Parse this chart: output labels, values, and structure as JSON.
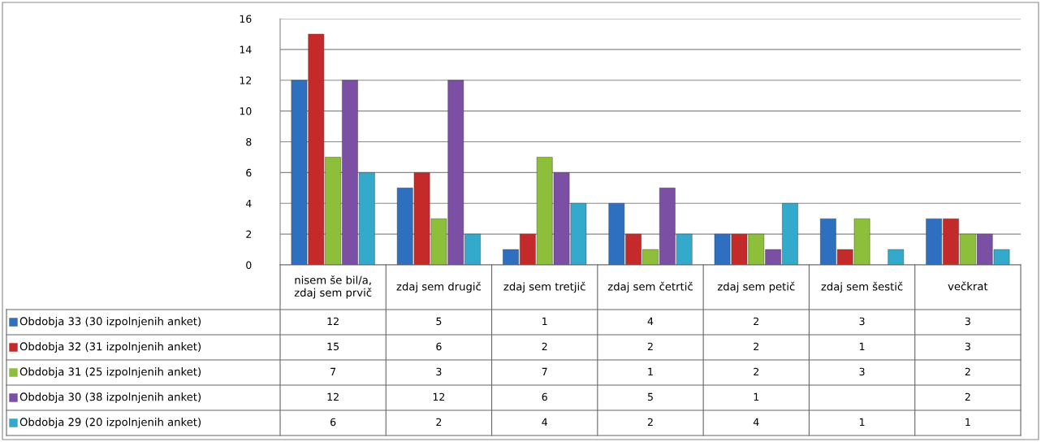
{
  "chart_data": {
    "type": "bar",
    "categories": [
      "nisem še bil/a,\nzdaj sem prvič",
      "zdaj sem drugič",
      "zdaj sem tretjič",
      "zdaj sem četrtič",
      "zdaj sem petič",
      "zdaj sem šestič",
      "večkrat"
    ],
    "series": [
      {
        "name": "Obdobja 33 (30 izpolnjenih anket)",
        "color": "#2f6fc0",
        "values": [
          12,
          5,
          1,
          4,
          2,
          3,
          3
        ]
      },
      {
        "name": "Obdobja 32 (31 izpolnjenih anket)",
        "color": "#c42a2a",
        "values": [
          15,
          6,
          2,
          2,
          2,
          1,
          3
        ]
      },
      {
        "name": "Obdobja 31 (25 izpolnjenih anket)",
        "color": "#8dbf3a",
        "values": [
          7,
          3,
          7,
          1,
          2,
          3,
          2
        ]
      },
      {
        "name": "Obdobja 30 (38 izpolnjenih anket)",
        "color": "#7b4fa3",
        "values": [
          12,
          12,
          6,
          5,
          1,
          null,
          2
        ]
      },
      {
        "name": "Obdobja 29 (20 izpolnjenih anket)",
        "color": "#33a9cc",
        "values": [
          6,
          2,
          4,
          2,
          4,
          1,
          1
        ]
      }
    ],
    "ylim": [
      0,
      16
    ],
    "yticks": [
      0,
      2,
      4,
      6,
      8,
      10,
      12,
      14,
      16
    ],
    "grid": "y",
    "legend": "bottom left",
    "data_labels": true
  }
}
